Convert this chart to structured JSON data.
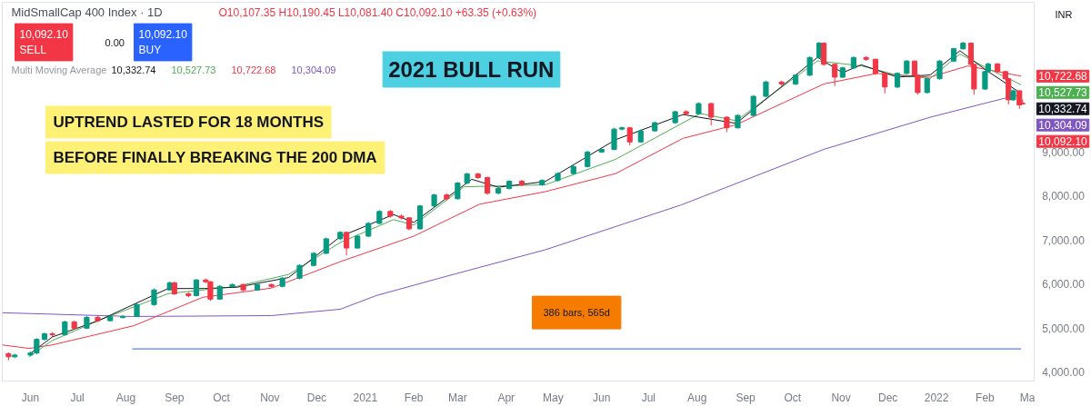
{
  "chart_data": {
    "type": "candlestick",
    "title": "MidSmallCap 400 Index · 1D",
    "subtitle": "O10,107.35 H10,190.45 L10,081.40 C10,092.10 +63.35 (+0.63%)",
    "legend_title": "Multi Moving Average",
    "x": [
      "2020-05-18",
      "2020-05-22",
      "2020-06-01",
      "2020-06-05",
      "2020-06-10",
      "2020-06-15",
      "2020-06-23",
      "2020-06-29",
      "2020-07-07",
      "2020-07-14",
      "2020-07-22",
      "2020-07-30",
      "2020-08-08",
      "2020-08-19",
      "2020-08-29",
      "2020-09-01",
      "2020-09-10",
      "2020-09-15",
      "2020-09-21",
      "2020-09-24",
      "2020-09-30",
      "2020-10-08",
      "2020-10-15",
      "2020-10-24",
      "2020-11-02",
      "2020-11-09",
      "2020-11-20",
      "2020-11-29",
      "2020-12-07",
      "2020-12-16",
      "2020-12-20",
      "2020-12-27",
      "2021-01-03",
      "2021-01-10",
      "2021-01-17",
      "2021-01-24",
      "2021-01-29",
      "2021-02-05",
      "2021-02-14",
      "2021-02-22",
      "2021-03-01",
      "2021-03-07",
      "2021-03-14",
      "2021-03-20",
      "2021-03-27",
      "2021-04-03",
      "2021-04-11",
      "2021-04-24",
      "2021-05-04",
      "2021-05-14",
      "2021-05-23",
      "2021-06-01",
      "2021-06-09",
      "2021-06-14",
      "2021-06-19",
      "2021-06-26",
      "2021-07-05",
      "2021-07-18",
      "2021-07-25",
      "2021-08-02",
      "2021-08-10",
      "2021-08-20",
      "2021-08-27",
      "2021-09-06",
      "2021-09-14",
      "2021-09-24",
      "2021-10-03",
      "2021-10-12",
      "2021-10-18",
      "2021-10-21",
      "2021-10-28",
      "2021-11-02",
      "2021-11-09",
      "2021-11-17",
      "2021-11-23",
      "2021-11-29",
      "2021-12-07",
      "2021-12-13",
      "2021-12-18",
      "2021-12-20",
      "2021-12-26",
      "2022-01-03",
      "2022-01-12",
      "2022-01-18",
      "2022-01-23",
      "2022-01-25",
      "2022-02-01",
      "2022-02-03",
      "2022-02-09",
      "2022-02-14",
      "2022-02-16",
      "2022-02-19",
      "2022-02-23",
      "2022-02-25"
    ],
    "ohlc": [
      [
        4420,
        4450,
        4270,
        4350
      ],
      [
        4350,
        4420,
        4320,
        4390
      ],
      [
        4390,
        4470,
        4360,
        4435
      ],
      [
        4435,
        4775,
        4410,
        4745
      ],
      [
        4745,
        4900,
        4720,
        4870
      ],
      [
        4870,
        4910,
        4800,
        4850
      ],
      [
        4850,
        5170,
        4830,
        5140
      ],
      [
        5140,
        5170,
        4970,
        5000
      ],
      [
        5000,
        5280,
        4980,
        5245
      ],
      [
        5245,
        5275,
        5140,
        5170
      ],
      [
        5170,
        5295,
        5150,
        5265
      ],
      [
        5240,
        5300,
        5220,
        5265
      ],
      [
        5265,
        5565,
        5250,
        5535
      ],
      [
        5535,
        5900,
        5510,
        5870
      ],
      [
        5870,
        6060,
        5850,
        6030
      ],
      [
        6030,
        6050,
        5750,
        5780
      ],
      [
        5780,
        5820,
        5700,
        5740
      ],
      [
        5740,
        6120,
        5720,
        6095
      ],
      [
        6095,
        6130,
        6020,
        6055
      ],
      [
        6055,
        6070,
        5620,
        5660
      ],
      [
        5660,
        5980,
        5640,
        5950
      ],
      [
        5950,
        6020,
        5920,
        5990
      ],
      [
        5990,
        6010,
        5840,
        5870
      ],
      [
        5870,
        6020,
        5850,
        5990
      ],
      [
        5990,
        6010,
        5920,
        5950
      ],
      [
        5950,
        6160,
        5930,
        6135
      ],
      [
        6135,
        6450,
        6110,
        6425
      ],
      [
        6425,
        6730,
        6400,
        6700
      ],
      [
        6700,
        7060,
        6680,
        7030
      ],
      [
        7030,
        7200,
        7000,
        7175
      ],
      [
        7175,
        7190,
        6650,
        6820
      ],
      [
        6820,
        7120,
        6800,
        7090
      ],
      [
        7090,
        7410,
        7070,
        7380
      ],
      [
        7380,
        7680,
        7360,
        7650
      ],
      [
        7650,
        7680,
        7510,
        7545
      ],
      [
        7545,
        7580,
        7470,
        7505
      ],
      [
        7505,
        7520,
        7220,
        7255
      ],
      [
        7255,
        7800,
        7240,
        7775
      ],
      [
        7775,
        8050,
        7750,
        8025
      ],
      [
        8025,
        8060,
        7900,
        7940
      ],
      [
        7940,
        8320,
        7920,
        8295
      ],
      [
        8295,
        8530,
        8270,
        8500
      ],
      [
        8500,
        8530,
        8390,
        8420
      ],
      [
        8420,
        8440,
        8030,
        8065
      ],
      [
        8065,
        8200,
        8040,
        8170
      ],
      [
        8170,
        8360,
        8150,
        8335
      ],
      [
        8335,
        8370,
        8220,
        8255
      ],
      [
        8255,
        8380,
        8230,
        8355
      ],
      [
        8355,
        8540,
        8330,
        8510
      ],
      [
        8510,
        8700,
        8490,
        8670
      ],
      [
        8670,
        9030,
        8650,
        9000
      ],
      [
        9000,
        9090,
        8980,
        9060
      ],
      [
        9060,
        9550,
        9040,
        9520
      ],
      [
        9520,
        9580,
        9490,
        9550
      ],
      [
        9550,
        9570,
        9150,
        9230
      ],
      [
        9230,
        9510,
        9210,
        9480
      ],
      [
        9480,
        9690,
        9460,
        9665
      ],
      [
        9665,
        9940,
        9640,
        9915
      ],
      [
        9915,
        9950,
        9840,
        9870
      ],
      [
        9870,
        10130,
        9850,
        10100
      ],
      [
        10100,
        10120,
        9600,
        9790
      ],
      [
        9790,
        9810,
        9450,
        9550
      ],
      [
        9550,
        9860,
        9530,
        9830
      ],
      [
        9830,
        10290,
        9810,
        10265
      ],
      [
        10265,
        10620,
        10240,
        10590
      ],
      [
        10590,
        10620,
        10510,
        10545
      ],
      [
        10545,
        10770,
        10520,
        10745
      ],
      [
        10745,
        11170,
        10720,
        11145
      ],
      [
        11145,
        11500,
        11120,
        11470
      ],
      [
        11470,
        11490,
        10960,
        10990
      ],
      [
        10990,
        11010,
        10500,
        10700
      ],
      [
        10700,
        10940,
        10680,
        10910
      ],
      [
        10910,
        11170,
        10890,
        11145
      ],
      [
        11145,
        11180,
        11070,
        11105
      ],
      [
        11105,
        11120,
        10750,
        10785
      ],
      [
        10785,
        10800,
        10330,
        10475
      ],
      [
        10475,
        10810,
        10450,
        10785
      ],
      [
        10785,
        11090,
        10760,
        11065
      ],
      [
        11065,
        11080,
        10710,
        10745
      ],
      [
        10745,
        10760,
        10300,
        10350
      ],
      [
        10350,
        10690,
        10330,
        10665
      ],
      [
        10665,
        11090,
        10640,
        11065
      ],
      [
        11065,
        11370,
        11040,
        11345
      ],
      [
        11345,
        11500,
        11320,
        11470
      ],
      [
        11470,
        11490,
        10960,
        10990
      ],
      [
        10990,
        11000,
        10300,
        10430
      ],
      [
        10430,
        10850,
        10410,
        10825
      ],
      [
        10825,
        11030,
        10800,
        11000
      ],
      [
        11000,
        11020,
        10790,
        10825
      ],
      [
        10825,
        10840,
        10630,
        10665
      ],
      [
        10665,
        10680,
        10080,
        10185
      ],
      [
        10185,
        10420,
        10160,
        10390
      ],
      [
        10390,
        10400,
        9980,
        10070
      ],
      [
        10107.35,
        10190.45,
        10081.4,
        10092.1
      ]
    ],
    "series": [
      {
        "type": "line",
        "color": "#2962ff",
        "x": [
          "2020-08-05",
          "2022-02-24"
        ],
        "values": [
          4530,
          4530
        ]
      },
      {
        "type": "line",
        "color": "#7e57c2",
        "x": [
          "2020-05-14",
          "2020-08-05",
          "2020-11-02",
          "2020-12-16",
          "2021-01-08",
          "2021-02-22",
          "2021-04-26",
          "2021-07-22",
          "2021-10-21",
          "2021-12-28",
          "2022-02-14",
          "2022-02-24"
        ],
        "values": [
          5350,
          5265,
          5285,
          5430,
          5740,
          6180,
          6780,
          7800,
          9060,
          9790,
          10225,
          10304.09
        ],
        "value_labels": [
          null,
          null,
          null,
          null,
          null,
          null,
          null,
          null,
          null,
          null,
          null,
          "10,304.09"
        ]
      },
      {
        "type": "line",
        "color": "#f23645",
        "x": [
          "2020-05-14",
          "2020-05-31",
          "2020-06-15",
          "2020-08-06",
          "2020-09-19",
          "2020-11-02",
          "2020-12-16",
          "2021-02-01",
          "2021-03-15",
          "2021-04-26",
          "2021-06-10",
          "2021-07-23",
          "2021-08-26",
          "2021-10-21",
          "2021-11-24",
          "2021-12-28",
          "2022-01-21",
          "2022-02-24"
        ],
        "values": [
          4620,
          4540,
          4620,
          5055,
          5700,
          5910,
          6510,
          7090,
          7815,
          8100,
          8510,
          9310,
          9620,
          10545,
          10785,
          10700,
          10955,
          10722.68
        ],
        "value_labels": [
          null,
          null,
          null,
          null,
          null,
          null,
          null,
          null,
          null,
          null,
          null,
          null,
          null,
          null,
          null,
          null,
          null,
          "10,722.68"
        ]
      },
      {
        "type": "line",
        "color": "#4caf50",
        "x": [
          "2020-05-31",
          "2020-06-15",
          "2020-07-15",
          "2020-08-28",
          "2020-10-11",
          "2020-11-13",
          "2020-12-16",
          "2021-01-19",
          "2021-02-01",
          "2021-03-05",
          "2021-04-26",
          "2021-06-10",
          "2021-08-03",
          "2021-08-26",
          "2021-10-17",
          "2021-11-14",
          "2021-12-07",
          "2021-12-28",
          "2022-01-16",
          "2022-02-02",
          "2022-02-24"
        ],
        "values": [
          4350,
          4720,
          5180,
          5785,
          5950,
          6220,
          6945,
          7465,
          7340,
          8210,
          8255,
          8835,
          9875,
          9710,
          11070,
          10955,
          10745,
          10670,
          11225,
          10910,
          10527.73
        ],
        "value_labels": [
          null,
          null,
          null,
          null,
          null,
          null,
          null,
          null,
          null,
          null,
          null,
          null,
          null,
          null,
          null,
          null,
          null,
          null,
          null,
          null,
          "10,527.73"
        ]
      },
      {
        "type": "line",
        "color": "#131722",
        "x": [
          "2020-05-31",
          "2020-06-15",
          "2020-07-15",
          "2020-08-28",
          "2020-09-20",
          "2020-10-11",
          "2020-11-13",
          "2020-12-16",
          "2021-01-19",
          "2021-02-01",
          "2021-03-10",
          "2021-03-27",
          "2021-04-26",
          "2021-06-10",
          "2021-07-23",
          "2021-08-26",
          "2021-10-17",
          "2021-11-02",
          "2021-11-14",
          "2021-12-07",
          "2021-12-28",
          "2022-01-16",
          "2022-02-02",
          "2022-02-24"
        ],
        "values": [
          4400,
          4800,
          5180,
          5900,
          5900,
          5930,
          6150,
          7080,
          7580,
          7400,
          8380,
          8200,
          8330,
          9280,
          9850,
          9650,
          11150,
          10800,
          10980,
          10700,
          10750,
          11300,
          10850,
          10332.74
        ],
        "value_labels": [
          null,
          null,
          null,
          null,
          null,
          null,
          null,
          null,
          null,
          null,
          null,
          null,
          null,
          null,
          null,
          null,
          null,
          null,
          null,
          null,
          null,
          null,
          null,
          "10,332.74"
        ]
      }
    ],
    "xlim": [
      "2020-05-14",
      "2022-03-05"
    ],
    "xticks": [
      {
        "value": "2020-06-01",
        "label": "Jun"
      },
      {
        "value": "2020-07-01",
        "label": "Jul"
      },
      {
        "value": "2020-08-01",
        "label": "Aug"
      },
      {
        "value": "2020-09-01",
        "label": "Sep"
      },
      {
        "value": "2020-10-01",
        "label": "Oct"
      },
      {
        "value": "2020-11-01",
        "label": "Nov"
      },
      {
        "value": "2020-12-01",
        "label": "Dec"
      },
      {
        "value": "2021-01-01",
        "label": "2021"
      },
      {
        "value": "2021-02-01",
        "label": "Feb"
      },
      {
        "value": "2021-03-01",
        "label": "Mar"
      },
      {
        "value": "2021-04-01",
        "label": "Apr"
      },
      {
        "value": "2021-05-01",
        "label": "May"
      },
      {
        "value": "2021-06-01",
        "label": "Jun"
      },
      {
        "value": "2021-07-01",
        "label": "Jul"
      },
      {
        "value": "2021-08-01",
        "label": "Aug"
      },
      {
        "value": "2021-09-01",
        "label": "Sep"
      },
      {
        "value": "2021-10-01",
        "label": "Oct"
      },
      {
        "value": "2021-11-01",
        "label": "Nov"
      },
      {
        "value": "2021-12-01",
        "label": "Dec"
      },
      {
        "value": "2022-01-01",
        "label": "2022"
      },
      {
        "value": "2022-02-01",
        "label": "Feb"
      },
      {
        "value": "2022-03-01",
        "label": "Ma"
      }
    ],
    "ylim": [
      3800,
      12400
    ],
    "yticks": [
      {
        "value": 4000,
        "label": "4,000.00"
      },
      {
        "value": 5000,
        "label": "5,000.00"
      },
      {
        "value": 6000,
        "label": "6,000.00"
      },
      {
        "value": 7000,
        "label": "7,000.00"
      },
      {
        "value": 8000,
        "label": "8,000.00"
      },
      {
        "value": 9000,
        "label": "9,000.00"
      }
    ],
    "annotations": [
      "2021 BULL RUN",
      "UPTREND LASTED FOR 18 MONTHS",
      "BEFORE FINALLY BREAKING THE 200 DMA",
      "10,092.10",
      "SELL",
      "0.00",
      "10,092.10",
      "BUY",
      "INR",
      "10,092.10",
      "10,332.74",
      "10,527.73",
      "10,722.68",
      "10,304.09",
      "386 bars, 565d"
    ]
  }
}
